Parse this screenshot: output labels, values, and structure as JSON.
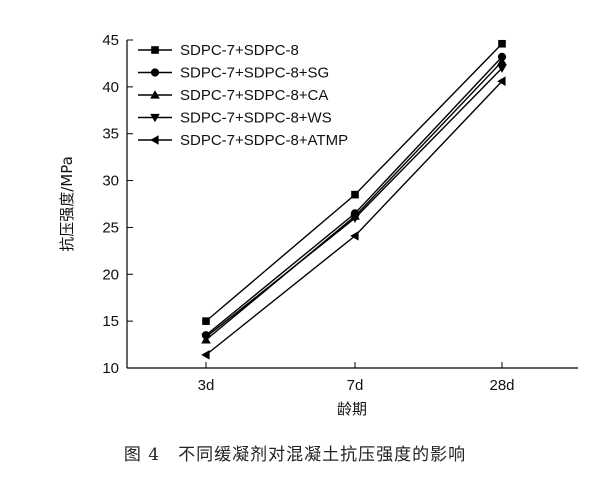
{
  "caption": "图 4　不同缓凝剂对混凝土抗压强度的影响",
  "chart_data": {
    "type": "line",
    "categories": [
      "3d",
      "7d",
      "28d"
    ],
    "xlabel": "龄期",
    "ylabel": "抗压强度/MPa",
    "ylim": [
      10,
      45
    ],
    "yticks": [
      10,
      15,
      20,
      25,
      30,
      35,
      40,
      45
    ],
    "grid": false,
    "legend_position": "top-left",
    "series": [
      {
        "name": "SDPC-7+SDPC-8",
        "marker": "square",
        "values": [
          15.0,
          28.5,
          44.6
        ]
      },
      {
        "name": "SDPC-7+SDPC-8+SG",
        "marker": "circle",
        "values": [
          13.5,
          26.5,
          43.2
        ]
      },
      {
        "name": "SDPC-7+SDPC-8+CA",
        "marker": "triangle-up",
        "values": [
          13.0,
          26.2,
          42.7
        ]
      },
      {
        "name": "SDPC-7+SDPC-8+WS",
        "marker": "triangle-down",
        "values": [
          13.3,
          26.0,
          42.0
        ]
      },
      {
        "name": "SDPC-7+SDPC-8+ATMP",
        "marker": "triangle-left",
        "values": [
          11.4,
          24.1,
          40.6
        ]
      }
    ]
  }
}
